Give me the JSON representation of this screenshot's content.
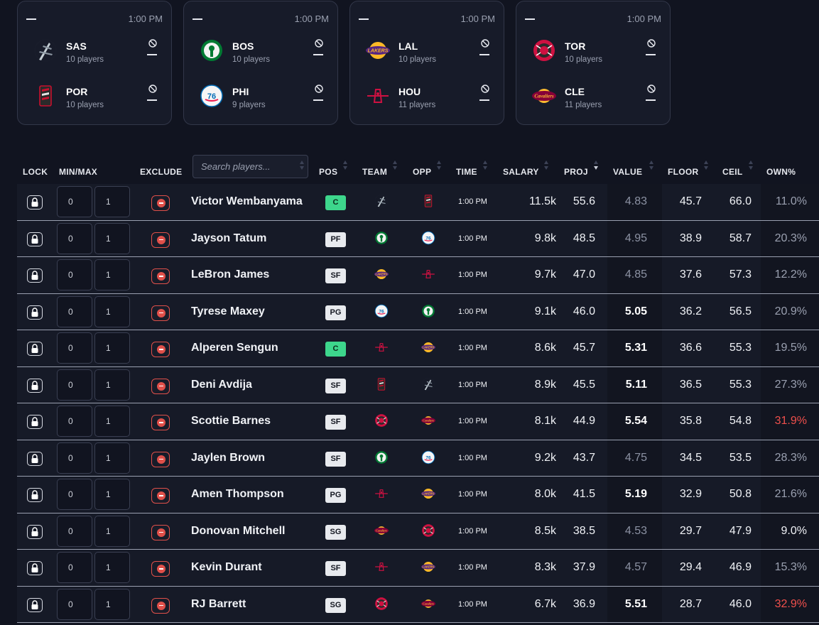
{
  "games": [
    {
      "time": "1:00 PM",
      "teams": [
        {
          "abbr": "SAS",
          "count": "10 players",
          "logo": "spurs-logo"
        },
        {
          "abbr": "POR",
          "count": "10 players",
          "logo": "blazers-logo"
        }
      ]
    },
    {
      "time": "1:00 PM",
      "teams": [
        {
          "abbr": "BOS",
          "count": "10 players",
          "logo": "celtics-logo"
        },
        {
          "abbr": "PHI",
          "count": "9 players",
          "logo": "sixers-logo"
        }
      ]
    },
    {
      "time": "1:00 PM",
      "teams": [
        {
          "abbr": "LAL",
          "count": "10 players",
          "logo": "lakers-logo"
        },
        {
          "abbr": "HOU",
          "count": "11 players",
          "logo": "rockets-logo"
        }
      ]
    },
    {
      "time": "1:00 PM",
      "teams": [
        {
          "abbr": "TOR",
          "count": "10 players",
          "logo": "raptors-logo"
        },
        {
          "abbr": "CLE",
          "count": "11 players",
          "logo": "cavaliers-logo"
        }
      ]
    }
  ],
  "table": {
    "headers": {
      "lock": "LOCK",
      "minmax": "MIN/MAX",
      "exclude": "EXCLUDE",
      "pos": "POS",
      "team": "TEAM",
      "opp": "OPP",
      "time": "TIME",
      "salary": "SALARY",
      "proj": "PROJ",
      "value": "VALUE",
      "floor": "FLOOR",
      "ceil": "CEIL",
      "own": "OWN%"
    },
    "search_placeholder": "Search players...",
    "sorted_column": "proj",
    "min_placeholder": "0",
    "max_placeholder": "1",
    "rows": [
      {
        "name": "Victor Wembanyama",
        "pos": "C",
        "team": "SAS",
        "opp": "POR",
        "time": "1:00 PM",
        "salary": "11.5k",
        "proj": "55.6",
        "value": "4.83",
        "value_bold": false,
        "floor": "45.7",
        "ceil": "66.0",
        "own": "11.0%",
        "own_style": "dim"
      },
      {
        "name": "Jayson Tatum",
        "pos": "PF",
        "team": "BOS",
        "opp": "PHI",
        "time": "1:00 PM",
        "salary": "9.8k",
        "proj": "48.5",
        "value": "4.95",
        "value_bold": false,
        "floor": "38.9",
        "ceil": "58.7",
        "own": "20.3%",
        "own_style": "dim"
      },
      {
        "name": "LeBron James",
        "pos": "SF",
        "team": "LAL",
        "opp": "HOU",
        "time": "1:00 PM",
        "salary": "9.7k",
        "proj": "47.0",
        "value": "4.85",
        "value_bold": false,
        "floor": "37.6",
        "ceil": "57.3",
        "own": "12.2%",
        "own_style": "dim"
      },
      {
        "name": "Tyrese Maxey",
        "pos": "PG",
        "team": "PHI",
        "opp": "BOS",
        "time": "1:00 PM",
        "salary": "9.1k",
        "proj": "46.0",
        "value": "5.05",
        "value_bold": true,
        "floor": "36.2",
        "ceil": "56.5",
        "own": "20.9%",
        "own_style": "dim"
      },
      {
        "name": "Alperen Sengun",
        "pos": "C",
        "team": "HOU",
        "opp": "LAL",
        "time": "1:00 PM",
        "salary": "8.6k",
        "proj": "45.7",
        "value": "5.31",
        "value_bold": true,
        "floor": "36.6",
        "ceil": "55.3",
        "own": "19.5%",
        "own_style": "dim"
      },
      {
        "name": "Deni Avdija",
        "pos": "SF",
        "team": "POR",
        "opp": "SAS",
        "time": "1:00 PM",
        "salary": "8.9k",
        "proj": "45.5",
        "value": "5.11",
        "value_bold": true,
        "floor": "36.5",
        "ceil": "55.3",
        "own": "27.3%",
        "own_style": "dim"
      },
      {
        "name": "Scottie Barnes",
        "pos": "SF",
        "team": "TOR",
        "opp": "CLE",
        "time": "1:00 PM",
        "salary": "8.1k",
        "proj": "44.9",
        "value": "5.54",
        "value_bold": true,
        "floor": "35.8",
        "ceil": "54.8",
        "own": "31.9%",
        "own_style": "hot"
      },
      {
        "name": "Jaylen Brown",
        "pos": "SF",
        "team": "BOS",
        "opp": "PHI",
        "time": "1:00 PM",
        "salary": "9.2k",
        "proj": "43.7",
        "value": "4.75",
        "value_bold": false,
        "floor": "34.5",
        "ceil": "53.5",
        "own": "28.3%",
        "own_style": "dim"
      },
      {
        "name": "Amen Thompson",
        "pos": "PG",
        "team": "HOU",
        "opp": "LAL",
        "time": "1:00 PM",
        "salary": "8.0k",
        "proj": "41.5",
        "value": "5.19",
        "value_bold": true,
        "floor": "32.9",
        "ceil": "50.8",
        "own": "21.6%",
        "own_style": "dim"
      },
      {
        "name": "Donovan Mitchell",
        "pos": "SG",
        "team": "CLE",
        "opp": "TOR",
        "time": "1:00 PM",
        "salary": "8.5k",
        "proj": "38.5",
        "value": "4.53",
        "value_bold": false,
        "floor": "29.7",
        "ceil": "47.9",
        "own": "9.0%",
        "own_style": "white"
      },
      {
        "name": "Kevin Durant",
        "pos": "SF",
        "team": "HOU",
        "opp": "LAL",
        "time": "1:00 PM",
        "salary": "8.3k",
        "proj": "37.9",
        "value": "4.57",
        "value_bold": false,
        "floor": "29.4",
        "ceil": "46.9",
        "own": "15.3%",
        "own_style": "dim"
      },
      {
        "name": "RJ Barrett",
        "pos": "SG",
        "team": "TOR",
        "opp": "CLE",
        "time": "1:00 PM",
        "salary": "6.7k",
        "proj": "36.9",
        "value": "5.51",
        "value_bold": true,
        "floor": "28.7",
        "ceil": "46.0",
        "own": "32.9%",
        "own_style": "hot"
      }
    ]
  },
  "colors": {
    "background": "#111420",
    "card": "#171b29",
    "accent_red": "#e0504a",
    "own_hot": "#f0504c",
    "pos_center": "#3dd68c"
  }
}
